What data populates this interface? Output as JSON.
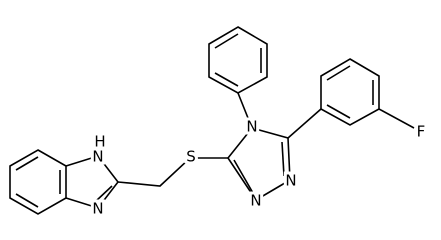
{
  "atoms": {
    "nh_h": "H",
    "nh_n": "N",
    "imid_n": "N",
    "sulfur": "S",
    "tri_n4": "N",
    "tri_n2": "N",
    "tri_n1": "N",
    "fluorine": "F"
  }
}
